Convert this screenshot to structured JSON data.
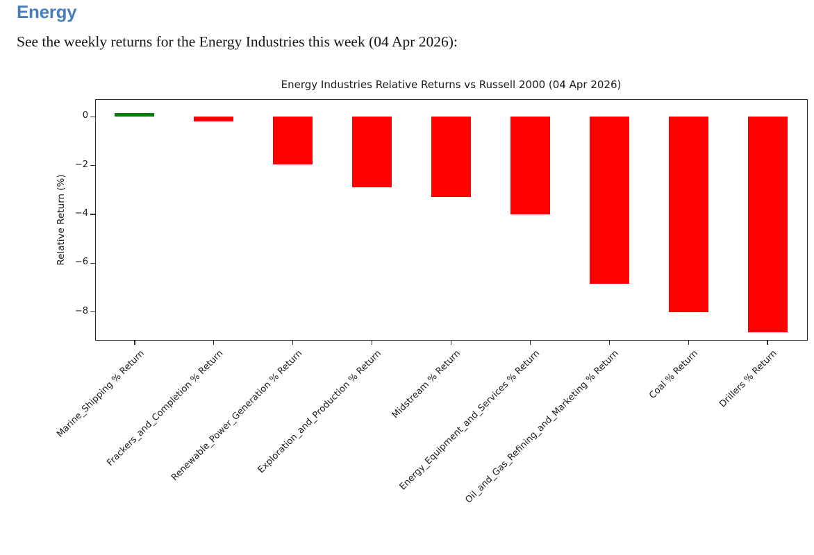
{
  "page": {
    "heading": "Energy",
    "heading_color": "#4a7ebb",
    "intro": "See the weekly returns for the Energy Industries this week (04 Apr 2026):"
  },
  "chart_data": {
    "type": "bar",
    "title": "Energy Industries Relative Returns vs Russell 2000 (04 Apr 2026)",
    "xlabel": "",
    "ylabel": "Relative Return (%)",
    "categories": [
      "Marine_Shipping % Return",
      "Frackers_and_Completion % Return",
      "Renewable_Power_Generation % Return",
      "Exploration_and_Production % Return",
      "Midstream % Return",
      "Energy_Equipment_and_Services % Return",
      "Oil_and_Gas_Refining_and_Marketing % Return",
      "Coal % Return",
      "Drillers % Return"
    ],
    "values": [
      0.15,
      -0.2,
      -1.95,
      -2.9,
      -3.3,
      -4.0,
      -6.85,
      -8.0,
      -8.85
    ],
    "positive_color": "#008000",
    "negative_color": "#ff0000",
    "ylim": [
      -9.15,
      0.72
    ],
    "yticks": [
      0,
      -2,
      -4,
      -6,
      -8
    ],
    "ytick_labels": [
      "0",
      "−2",
      "−4",
      "−6",
      "−8"
    ],
    "xtick_rotation_deg": 45,
    "grid": false
  }
}
